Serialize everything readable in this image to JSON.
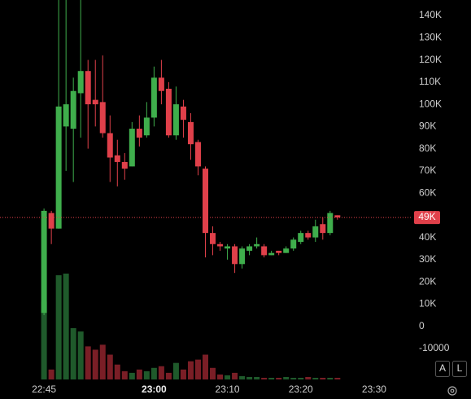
{
  "chart_data": {
    "type": "candlestick",
    "x": [
      "22:45",
      "22:46",
      "22:47",
      "22:48",
      "22:49",
      "22:50",
      "22:51",
      "22:52",
      "22:53",
      "22:54",
      "22:55",
      "22:56",
      "22:57",
      "22:58",
      "22:59",
      "23:00",
      "23:01",
      "23:02",
      "23:03",
      "23:04",
      "23:05",
      "23:06",
      "23:07",
      "23:08",
      "23:09",
      "23:10",
      "23:11",
      "23:12",
      "23:13",
      "23:14",
      "23:15",
      "23:16",
      "23:17",
      "23:18",
      "23:19",
      "23:20",
      "23:21",
      "23:22",
      "23:23",
      "23:24",
      "23:25"
    ],
    "open": [
      6000,
      51000,
      44000,
      90000,
      89000,
      105000,
      115000,
      102000,
      101000,
      87000,
      77000,
      74000,
      72000,
      89000,
      86000,
      94000,
      112000,
      107000,
      86000,
      99000,
      92000,
      83000,
      71000,
      42000,
      37000,
      35000,
      36000,
      28000,
      34000,
      36000,
      36000,
      32000,
      34000,
      33000,
      35000,
      38000,
      42000,
      40000,
      46000,
      42000,
      50000
    ],
    "high": [
      53000,
      52000,
      147000,
      150000,
      112000,
      150000,
      120000,
      120000,
      122000,
      95000,
      84000,
      78000,
      92000,
      95000,
      101000,
      117000,
      120000,
      110000,
      108000,
      102000,
      96000,
      84000,
      72000,
      45000,
      38000,
      37000,
      37000,
      36000,
      37000,
      40000,
      37000,
      34000,
      34000,
      36000,
      40000,
      43000,
      43000,
      48000,
      49000,
      52000,
      50000
    ],
    "low": [
      5000,
      37000,
      44000,
      70000,
      65000,
      85000,
      80000,
      90000,
      85000,
      65000,
      63000,
      66000,
      72000,
      81000,
      85000,
      90000,
      100000,
      85000,
      84000,
      85000,
      75000,
      68000,
      31000,
      32000,
      34000,
      30000,
      24000,
      26000,
      32000,
      35000,
      31000,
      32000,
      32000,
      33000,
      34000,
      37000,
      39000,
      38000,
      39000,
      41000,
      48000
    ],
    "close": [
      52000,
      44000,
      99000,
      100000,
      106000,
      115000,
      100000,
      100000,
      87000,
      76000,
      74000,
      71000,
      89000,
      85000,
      94000,
      112000,
      106000,
      86000,
      100000,
      93000,
      82000,
      72000,
      42000,
      37000,
      36000,
      36000,
      28000,
      35000,
      36000,
      37000,
      32000,
      33000,
      33000,
      35000,
      39000,
      42000,
      40000,
      45000,
      42000,
      51000,
      49000
    ],
    "volume": [
      94,
      12,
      126,
      128,
      62,
      58,
      40,
      36,
      42,
      30,
      18,
      10,
      8,
      12,
      10,
      14,
      16,
      8,
      20,
      12,
      22,
      24,
      30,
      14,
      6,
      5,
      8,
      4,
      3,
      3,
      2,
      2,
      2,
      3,
      2,
      2,
      3,
      2,
      2,
      2,
      2
    ],
    "ylim": [
      -24000,
      147000
    ],
    "yticks": [
      {
        "value": 140000,
        "label": "140K"
      },
      {
        "value": 130000,
        "label": "130K"
      },
      {
        "value": 120000,
        "label": "120K"
      },
      {
        "value": 110000,
        "label": "110K"
      },
      {
        "value": 100000,
        "label": "100K"
      },
      {
        "value": 90000,
        "label": "90K"
      },
      {
        "value": 80000,
        "label": "80K"
      },
      {
        "value": 70000,
        "label": "70K"
      },
      {
        "value": 60000,
        "label": "60K"
      },
      {
        "value": 50000,
        "label": "50K"
      },
      {
        "value": 40000,
        "label": "40K"
      },
      {
        "value": 30000,
        "label": "30K"
      },
      {
        "value": 20000,
        "label": "20K"
      },
      {
        "value": 10000,
        "label": "10K"
      },
      0,
      -10000
    ],
    "xlim": [
      "22:39",
      "23:35"
    ],
    "xticks": [
      "22:45",
      "23:00",
      "23:10",
      "23:20",
      "23:30"
    ],
    "last_price": {
      "value": 49000,
      "label": "49K"
    },
    "up_color": "#3fae4c",
    "down_color": "#e0404a",
    "volume_up_color": "#1f5a2b",
    "volume_down_color": "#7a1e26",
    "grid": false
  },
  "buttons": [
    "A",
    "L"
  ]
}
